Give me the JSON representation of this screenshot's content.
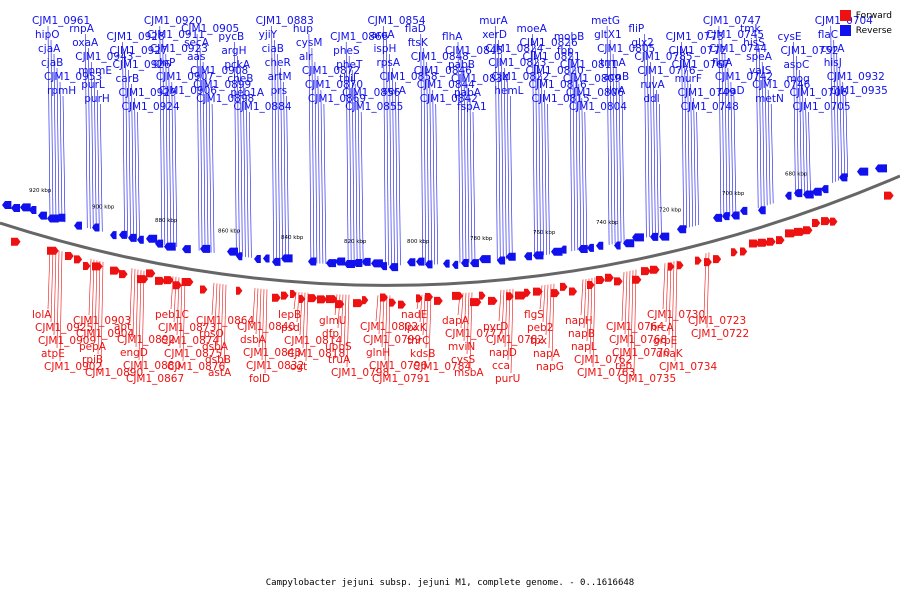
{
  "legend": {
    "forward": {
      "label": "Forward",
      "color": "#ee1111"
    },
    "reverse": {
      "label": "Reverse",
      "color": "#1111ee"
    }
  },
  "caption": "Campylobacter jejuni subsp. jejuni M1, complete genome. - 0..1616648",
  "scale_labels": [
    "920 kbp",
    "900 kbp",
    "880 kbp",
    "860 kbp",
    "840 kbp",
    "820 kbp",
    "800 kbp",
    "780 kbp",
    "760 kbp",
    "740 kbp",
    "720 kbp",
    "700 kbp",
    "680 kbp"
  ],
  "reverse_labels": [
    "CJM1_0961",
    "hipO",
    "cjaA",
    "cjaB",
    "CJM1_0953",
    "rpmH",
    "rnpA",
    "oxaA",
    "CJM1_0943",
    "mnmE",
    "purL",
    "purH",
    "CJM1_0928",
    "CJM1_0927",
    "CJM1_0926",
    "carB",
    "CJM1_0929",
    "CJM1_0924",
    "CJM1_0920",
    "CJM1_0911",
    "CJM1_0923",
    "glnP",
    "CJM1_0907",
    "CJM1_0906",
    "CJM1_0905",
    "secA",
    "aas",
    "CJM1_0908",
    "CJM1_0899",
    "CJM1_0898",
    "pycB",
    "argH",
    "pckA",
    "cheB",
    "peb1A",
    "CJM1_0884",
    "CJM1_0883",
    "yjiY",
    "ciaB",
    "cheR",
    "artM",
    "prs",
    "hup",
    "cysM",
    "alr",
    "CJM1_0872",
    "CJM1_0870",
    "CJM1_0869",
    "CJM1_0866",
    "pheS",
    "pheT",
    "thiJ",
    "CJM1_0856",
    "CJM1_0855",
    "CJM1_0854",
    "aroA",
    "ispH",
    "rpsA",
    "CJM1_0858",
    "serA",
    "flaD",
    "ftsK",
    "CJM1_0848",
    "CJM1_0846",
    "CJM1_0844",
    "CJM1_0842",
    "flhA",
    "CJM1_0845",
    "pabB",
    "CJM1_0834",
    "pabA",
    "fspA1",
    "murA",
    "xerD",
    "CJM1_0824",
    "CJM1_0823",
    "CJM1_0822",
    "hemL",
    "moeA",
    "CJM1_0826",
    "CJM1_0821",
    "CJM1_0820",
    "CJM1_0816",
    "CJM1_0815",
    "mobB",
    "fbp",
    "CJM1_0811",
    "CJM1_0809",
    "CJM1_0806",
    "CJM1_0804",
    "metG",
    "gltX1",
    "CJM1_0805",
    "trmA",
    "acnB",
    "ilvA",
    "fliP",
    "glx2",
    "CJM1_0785",
    "CJM1_0776",
    "ruvA",
    "ddl",
    "CJM1_0773",
    "CJM1_0772",
    "CJM1_0767",
    "murF",
    "CJM1_0749",
    "CJM1_0748",
    "CJM1_0747",
    "CJM1_0745",
    "CJM1_0744",
    "flgA",
    "CJM1_0742",
    "coaD",
    "tmk",
    "hisS",
    "speA",
    "valS",
    "CJM1_0746",
    "metN",
    "cysE",
    "CJM1_0752",
    "aspC",
    "mog",
    "CJM1_0706",
    "CJM1_0705",
    "CJM1_0704",
    "flaC",
    "corA",
    "hisJ",
    "CJM1_0932",
    "CJM1_0935"
  ],
  "forward_labels": [
    "lolA",
    "CJM1_0925",
    "CJM1_0909",
    "atpE",
    "CJM1_0902",
    "CJM1_0903",
    "CJM1_0904",
    "pepA",
    "rpiB",
    "CJM1_0890",
    "apt",
    "CJM1_0892",
    "engD",
    "CJM1_0880",
    "CJM1_0867",
    "peb1C",
    "CJM1_0873",
    "CJM1_0874",
    "CJM1_0875",
    "CJM1_0876",
    "CJM1_0864",
    "rpsO",
    "dsbA",
    "dsbB",
    "astA",
    "CJM1_0840",
    "dsbA",
    "CJM1_0843",
    "CJM1_0832",
    "folD",
    "lepB",
    "psd",
    "CJM1_0814",
    "CJM1_0818",
    "ogt",
    "glmU",
    "dfp",
    "uppS",
    "truA",
    "CJM1_0798",
    "CJM1_0802",
    "CJM1_0799",
    "glnH",
    "CJM1_0796",
    "CJM1_0791",
    "nadE",
    "lpxK",
    "thrC",
    "kdsB",
    "CJM1_0784",
    "dapA",
    "CJM1_0777",
    "mviN",
    "cysS",
    "msbA",
    "pyrD",
    "CJM1_0782",
    "napD",
    "cca",
    "purU",
    "flgS",
    "peb2",
    "tpx",
    "napA",
    "napG",
    "napH",
    "napB",
    "napL",
    "CJM1_0762",
    "CJM1_0763",
    "CJM1_0764",
    "CJM1_0768",
    "CJM1_0770",
    "rep",
    "CJM1_0735",
    "CJM1_0730",
    "hrcA",
    "grpE",
    "dnaK",
    "CJM1_0734",
    "CJM1_0723",
    "CJM1_0722"
  ]
}
